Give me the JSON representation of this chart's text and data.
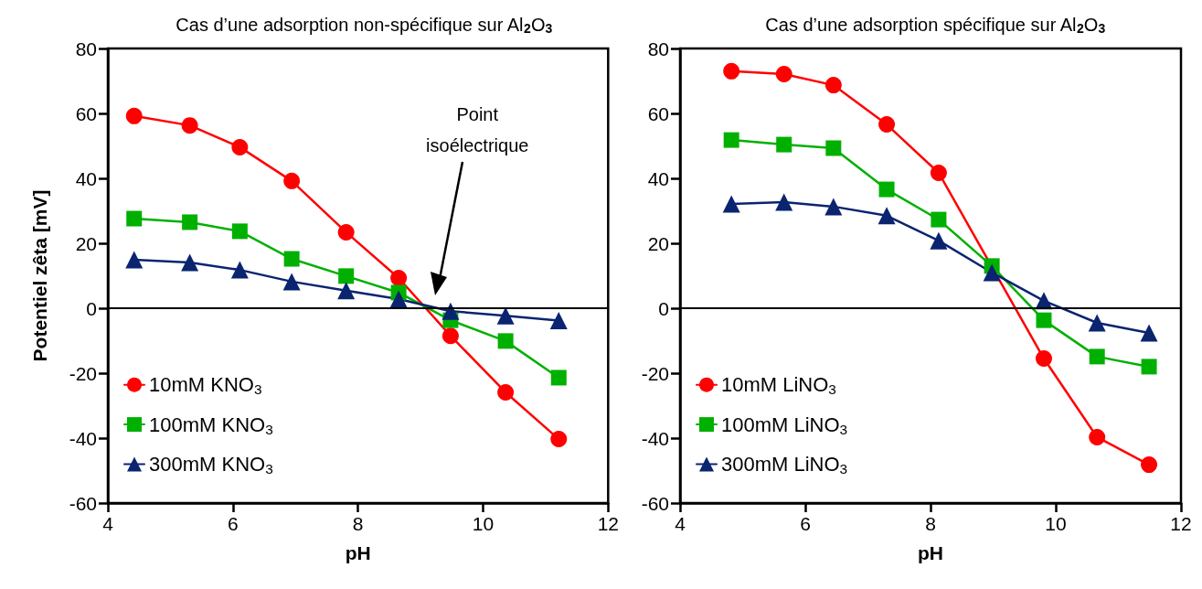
{
  "chart_data": [
    {
      "type": "line",
      "title": "Cas d’une adsorption non-spécifique sur Al$_{2}$O$_{3}$",
      "xlabel": "pH",
      "ylabel": "Potentiel zêta [mV]",
      "xlim": [
        4,
        12
      ],
      "xticks": [
        4,
        6,
        8,
        10,
        12
      ],
      "ylim": [
        -60,
        80
      ],
      "yticks": [
        -60,
        -40,
        -20,
        0,
        20,
        40,
        60,
        80
      ],
      "grid": false,
      "legend": "bottom left",
      "ref_lines": [
        {
          "axis": "y",
          "value": 0
        }
      ],
      "annotations": [
        "Point\nisoélectrique"
      ],
      "series": [
        {
          "name": "10mM KNO$_{3}$",
          "color": "#ff0000",
          "marker": "circle",
          "x": [
            4.42,
            5.31,
            6.11,
            6.94,
            7.81,
            8.65,
            9.48,
            10.36,
            11.21
          ],
          "values": [
            59.2,
            56.3,
            49.6,
            39.2,
            23.4,
            9.3,
            -8.5,
            -25.9,
            -40.3
          ]
        },
        {
          "name": "100mM KNO$_{3}$",
          "color": "#00b000",
          "marker": "square",
          "x": [
            4.42,
            5.31,
            6.11,
            6.94,
            7.81,
            8.65,
            9.48,
            10.36,
            11.21
          ],
          "values": [
            27.6,
            26.5,
            23.7,
            15.2,
            9.9,
            4.8,
            -3.7,
            -10.1,
            -21.4
          ]
        },
        {
          "name": "300mM KNO$_{3}$",
          "color": "#0a2470",
          "marker": "triangle",
          "x": [
            4.42,
            5.31,
            6.11,
            6.94,
            7.81,
            8.65,
            9.48,
            10.36,
            11.21
          ],
          "values": [
            14.9,
            14.1,
            11.8,
            8.2,
            5.4,
            2.8,
            -0.9,
            -2.3,
            -3.8
          ]
        }
      ]
    },
    {
      "type": "line",
      "title": "Cas d’une adsorption spécifique sur Al$_{2}$O$_{3}$",
      "xlabel": "pH",
      "xlim": [
        4,
        12
      ],
      "xticks": [
        4,
        6,
        8,
        10,
        12
      ],
      "ylim": [
        -60,
        80
      ],
      "yticks": [
        -60,
        -40,
        -20,
        0,
        20,
        40,
        60,
        80
      ],
      "grid": false,
      "legend": "bottom left",
      "ref_lines": [
        {
          "axis": "y",
          "value": 0
        }
      ],
      "series": [
        {
          "name": "10mM LiNO$_{3}$",
          "color": "#ff0000",
          "marker": "circle",
          "x": [
            4.82,
            5.66,
            6.45,
            7.3,
            8.13,
            8.98,
            9.81,
            10.66,
            11.49
          ],
          "values": [
            73,
            72.1,
            68.7,
            56.6,
            41.7,
            null,
            -15.5,
            -39.7,
            -48.2
          ]
        },
        {
          "name": "100mM LiNO$_{3}$",
          "color": "#00b000",
          "marker": "square",
          "x": [
            4.82,
            5.66,
            6.45,
            7.3,
            8.13,
            8.98,
            9.81,
            10.66,
            11.49
          ],
          "values": [
            51.8,
            50.4,
            49.3,
            36.6,
            27.3,
            13,
            -3.7,
            -14.9,
            -18
          ]
        },
        {
          "name": "300mM LiNO$_{3}$",
          "color": "#0a2470",
          "marker": "triangle",
          "x": [
            4.82,
            5.66,
            6.45,
            7.3,
            8.13,
            8.98,
            9.81,
            10.66,
            11.49
          ],
          "values": [
            32.1,
            32.7,
            31.3,
            28.5,
            20.8,
            11,
            2.3,
            -4.5,
            -7.6
          ]
        }
      ]
    }
  ]
}
